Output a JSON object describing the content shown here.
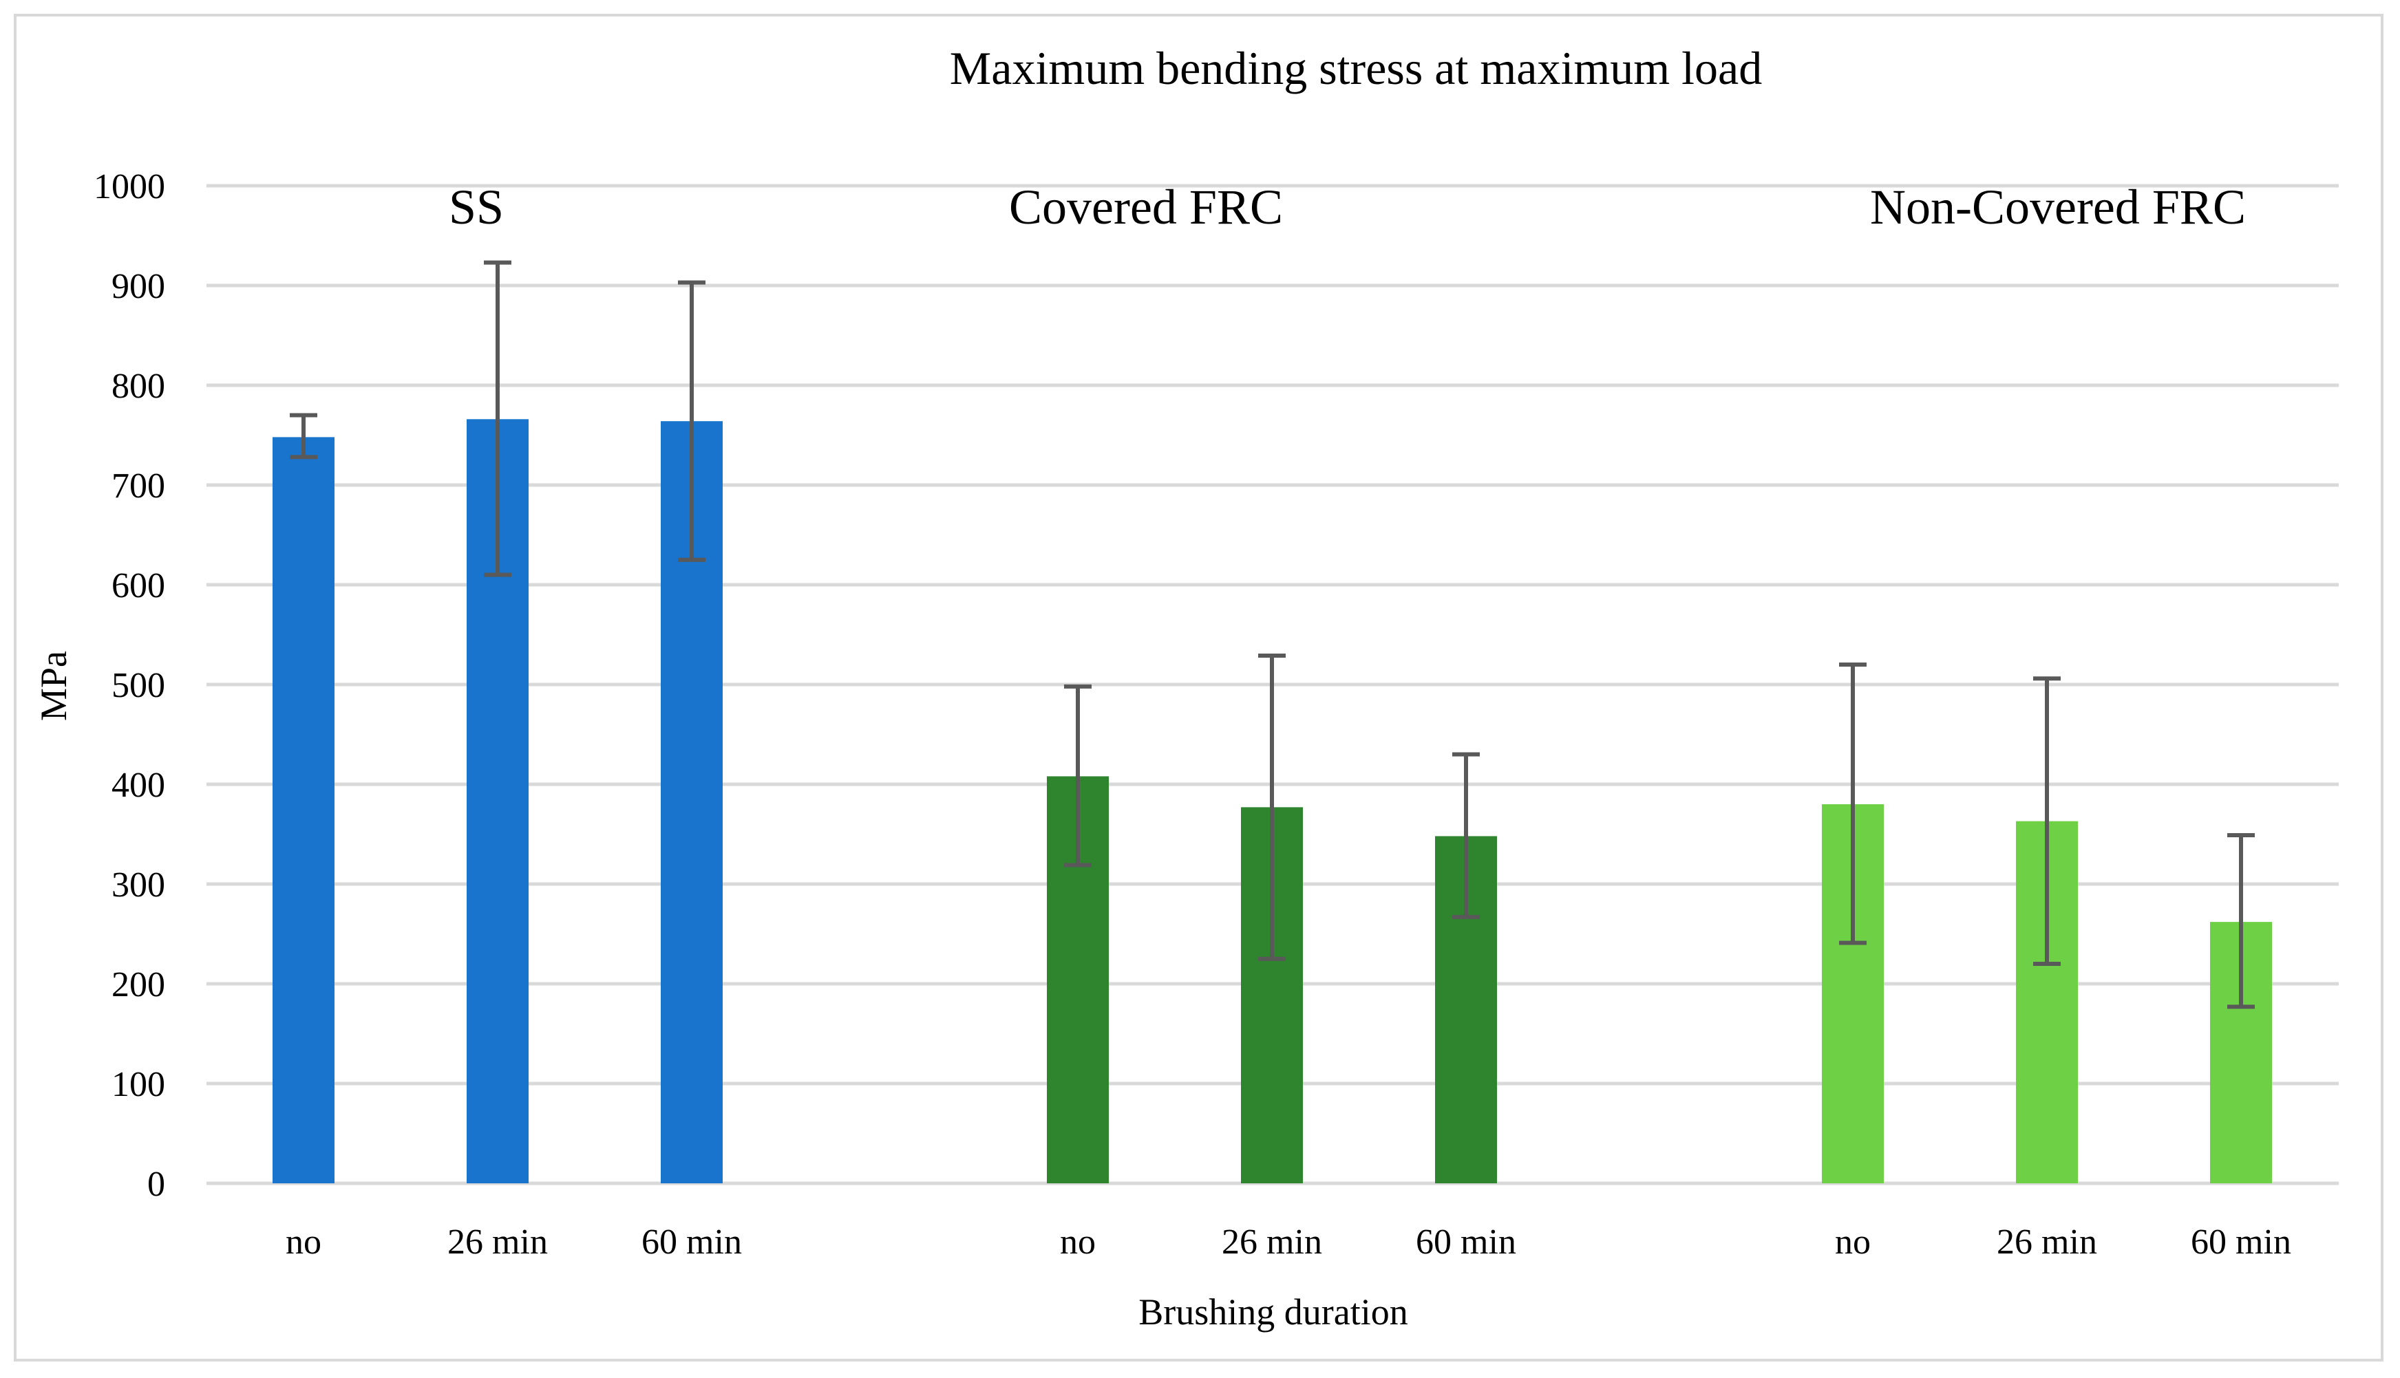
{
  "chart_data": {
    "type": "bar",
    "title": "Maximum bending stress at maximum load",
    "xlabel": "Brushing duration",
    "ylabel": "MPa",
    "ylim": [
      0,
      1000
    ],
    "yticks": [
      "0",
      "100",
      "200",
      "300",
      "400",
      "500",
      "600",
      "700",
      "800",
      "900",
      "1000"
    ],
    "grid": true,
    "groups": [
      {
        "name": "SS",
        "color": "#1874CD",
        "categories": [
          "no",
          "26 min",
          "60 min"
        ],
        "values": [
          748,
          766,
          764
        ],
        "err_low": [
          728,
          610,
          625
        ],
        "err_high": [
          770,
          923,
          903
        ]
      },
      {
        "name": "Covered FRC",
        "color": "#2E852E",
        "categories": [
          "no",
          "26 min",
          "60 min"
        ],
        "values": [
          408,
          377,
          348
        ],
        "err_low": [
          319,
          225,
          267
        ],
        "err_high": [
          498,
          529,
          430
        ]
      },
      {
        "name": "Non-Covered FRC",
        "color": "#6ED045",
        "categories": [
          "no",
          "26 min",
          "60 min"
        ],
        "values": [
          380,
          363,
          262
        ],
        "err_low": [
          241,
          220,
          177
        ],
        "err_high": [
          520,
          506,
          349
        ]
      }
    ]
  }
}
